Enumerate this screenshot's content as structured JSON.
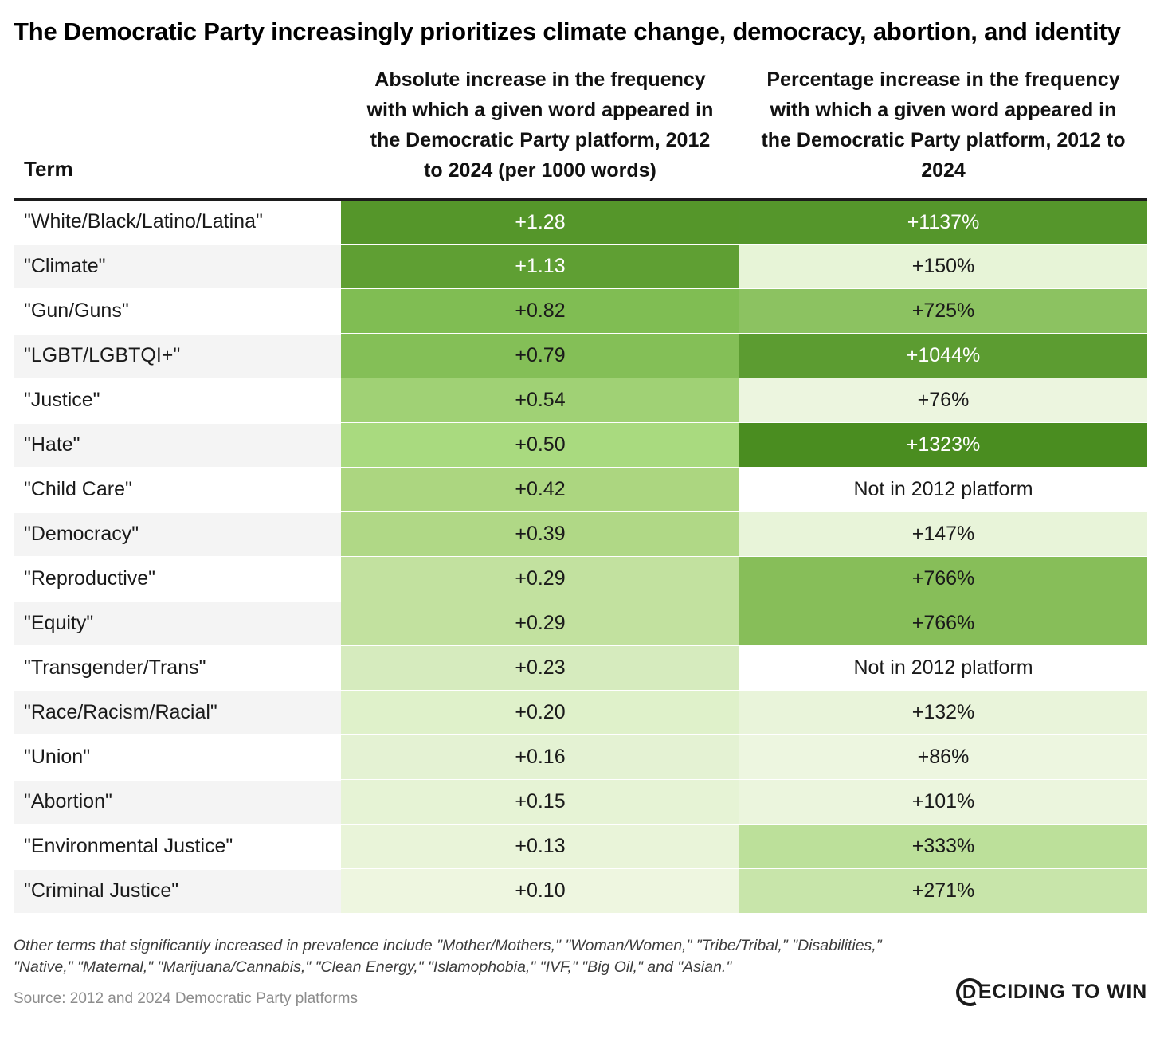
{
  "title": "The Democratic Party increasingly prioritizes climate change, democracy, abortion, and identity",
  "footnote": "Other terms that significantly increased in prevalence include \"Mother/Mothers,\" \"Woman/Women,\" \"Tribe/Tribal,\" \"Disabilities,\" \"Native,\" \"Maternal,\" \"Marijuana/Cannabis,\" \"Clean Energy,\" \"Islamophobia,\" \"IVF,\" \"Big Oil,\" and \"Asian.\"",
  "source": "Source: 2012 and 2024 Democratic Party platforms",
  "logo": {
    "letter_in_ring": "D",
    "rest": "ECIDING TO WIN"
  },
  "chart_data": {
    "type": "heatmap",
    "title": "The Democratic Party increasingly prioritizes climate change, democracy, abortion, and identity",
    "legend_position": "none",
    "color_scale": {
      "min_color": "#EFF6E0",
      "max_color": "#4A8D20",
      "light_text": "#1a1a1a",
      "dark_cell_text": "#ffffff"
    },
    "columns": [
      {
        "id": "term",
        "label": "Term"
      },
      {
        "id": "abs",
        "label": "Absolute increase in the frequency with which a given word appeared in the Democratic Party platform, 2012 to 2024 (per 1000 words)"
      },
      {
        "id": "pct",
        "label": "Percentage increase in the frequency with which a given word appeared in the Democratic Party platform, 2012 to 2024"
      }
    ],
    "rows": [
      {
        "term": "\"White/Black/Latino/Latina\"",
        "abs": "+1.28",
        "abs_bg": "#55962A",
        "abs_fg": "#FFFFFF",
        "pct": "+1137%",
        "pct_bg": "#55962B",
        "pct_fg": "#FFFFFF"
      },
      {
        "term": "\"Climate\"",
        "abs": "+1.13",
        "abs_bg": "#5F9F33",
        "abs_fg": "#FFFFFF",
        "pct": "+150%",
        "pct_bg": "#E7F4D7",
        "pct_fg": "#1A1A1A"
      },
      {
        "term": "\"Gun/Guns\"",
        "abs": "+0.82",
        "abs_bg": "#80BD53",
        "abs_fg": "#1A1A1A",
        "pct": "+725%",
        "pct_bg": "#8CC261",
        "pct_fg": "#1A1A1A"
      },
      {
        "term": "\"LGBT/LGBTQI+\"",
        "abs": "+0.79",
        "abs_bg": "#84BF57",
        "abs_fg": "#1A1A1A",
        "pct": "+1044%",
        "pct_bg": "#5C9C31",
        "pct_fg": "#FFFFFF"
      },
      {
        "term": "\"Justice\"",
        "abs": "+0.54",
        "abs_bg": "#A0D175",
        "abs_fg": "#1A1A1A",
        "pct": "+76%",
        "pct_bg": "#ECF5DF",
        "pct_fg": "#1A1A1A"
      },
      {
        "term": "\"Hate\"",
        "abs": "+0.50",
        "abs_bg": "#A9DA7F",
        "abs_fg": "#1A1A1A",
        "pct": "+1323%",
        "pct_bg": "#4A8D20",
        "pct_fg": "#FFFFFF"
      },
      {
        "term": "\"Child Care\"",
        "abs": "+0.42",
        "abs_bg": "#ACD680",
        "abs_fg": "#1A1A1A",
        "pct": "Not in 2012 platform",
        "pct_bg": "#FFFFFF",
        "pct_fg": "#1A1A1A"
      },
      {
        "term": "\"Democracy\"",
        "abs": "+0.39",
        "abs_bg": "#B0D886",
        "abs_fg": "#1A1A1A",
        "pct": "+147%",
        "pct_bg": "#E8F4D9",
        "pct_fg": "#1A1A1A"
      },
      {
        "term": "\"Reproductive\"",
        "abs": "+0.29",
        "abs_bg": "#C2E19F",
        "abs_fg": "#1A1A1A",
        "pct": "+766%",
        "pct_bg": "#87BE59",
        "pct_fg": "#1A1A1A"
      },
      {
        "term": "\"Equity\"",
        "abs": "+0.29",
        "abs_bg": "#C2E19F",
        "abs_fg": "#1A1A1A",
        "pct": "+766%",
        "pct_bg": "#87BE59",
        "pct_fg": "#1A1A1A"
      },
      {
        "term": "\"Transgender/Trans\"",
        "abs": "+0.23",
        "abs_bg": "#D6EBBE",
        "abs_fg": "#1A1A1A",
        "pct": "Not in 2012 platform",
        "pct_bg": "#FFFFFF",
        "pct_fg": "#1A1A1A"
      },
      {
        "term": "\"Race/Racism/Racial\"",
        "abs": "+0.20",
        "abs_bg": "#DFF1CA",
        "abs_fg": "#1A1A1A",
        "pct": "+132%",
        "pct_bg": "#E9F4DA",
        "pct_fg": "#1A1A1A"
      },
      {
        "term": "\"Union\"",
        "abs": "+0.16",
        "abs_bg": "#E4F2D3",
        "abs_fg": "#1A1A1A",
        "pct": "+86%",
        "pct_bg": "#EDF6E0",
        "pct_fg": "#1A1A1A"
      },
      {
        "term": "\"Abortion\"",
        "abs": "+0.15",
        "abs_bg": "#E6F3D5",
        "abs_fg": "#1A1A1A",
        "pct": "+101%",
        "pct_bg": "#EBF5DD",
        "pct_fg": "#1A1A1A"
      },
      {
        "term": "\"Environmental Justice\"",
        "abs": "+0.13",
        "abs_bg": "#E9F4D9",
        "abs_fg": "#1A1A1A",
        "pct": "+333%",
        "pct_bg": "#BCE09A",
        "pct_fg": "#1A1A1A"
      },
      {
        "term": "\"Criminal Justice\"",
        "abs": "+0.10",
        "abs_bg": "#EEF6E0",
        "abs_fg": "#1A1A1A",
        "pct": "+271%",
        "pct_bg": "#C8E5AA",
        "pct_fg": "#1A1A1A"
      }
    ]
  }
}
